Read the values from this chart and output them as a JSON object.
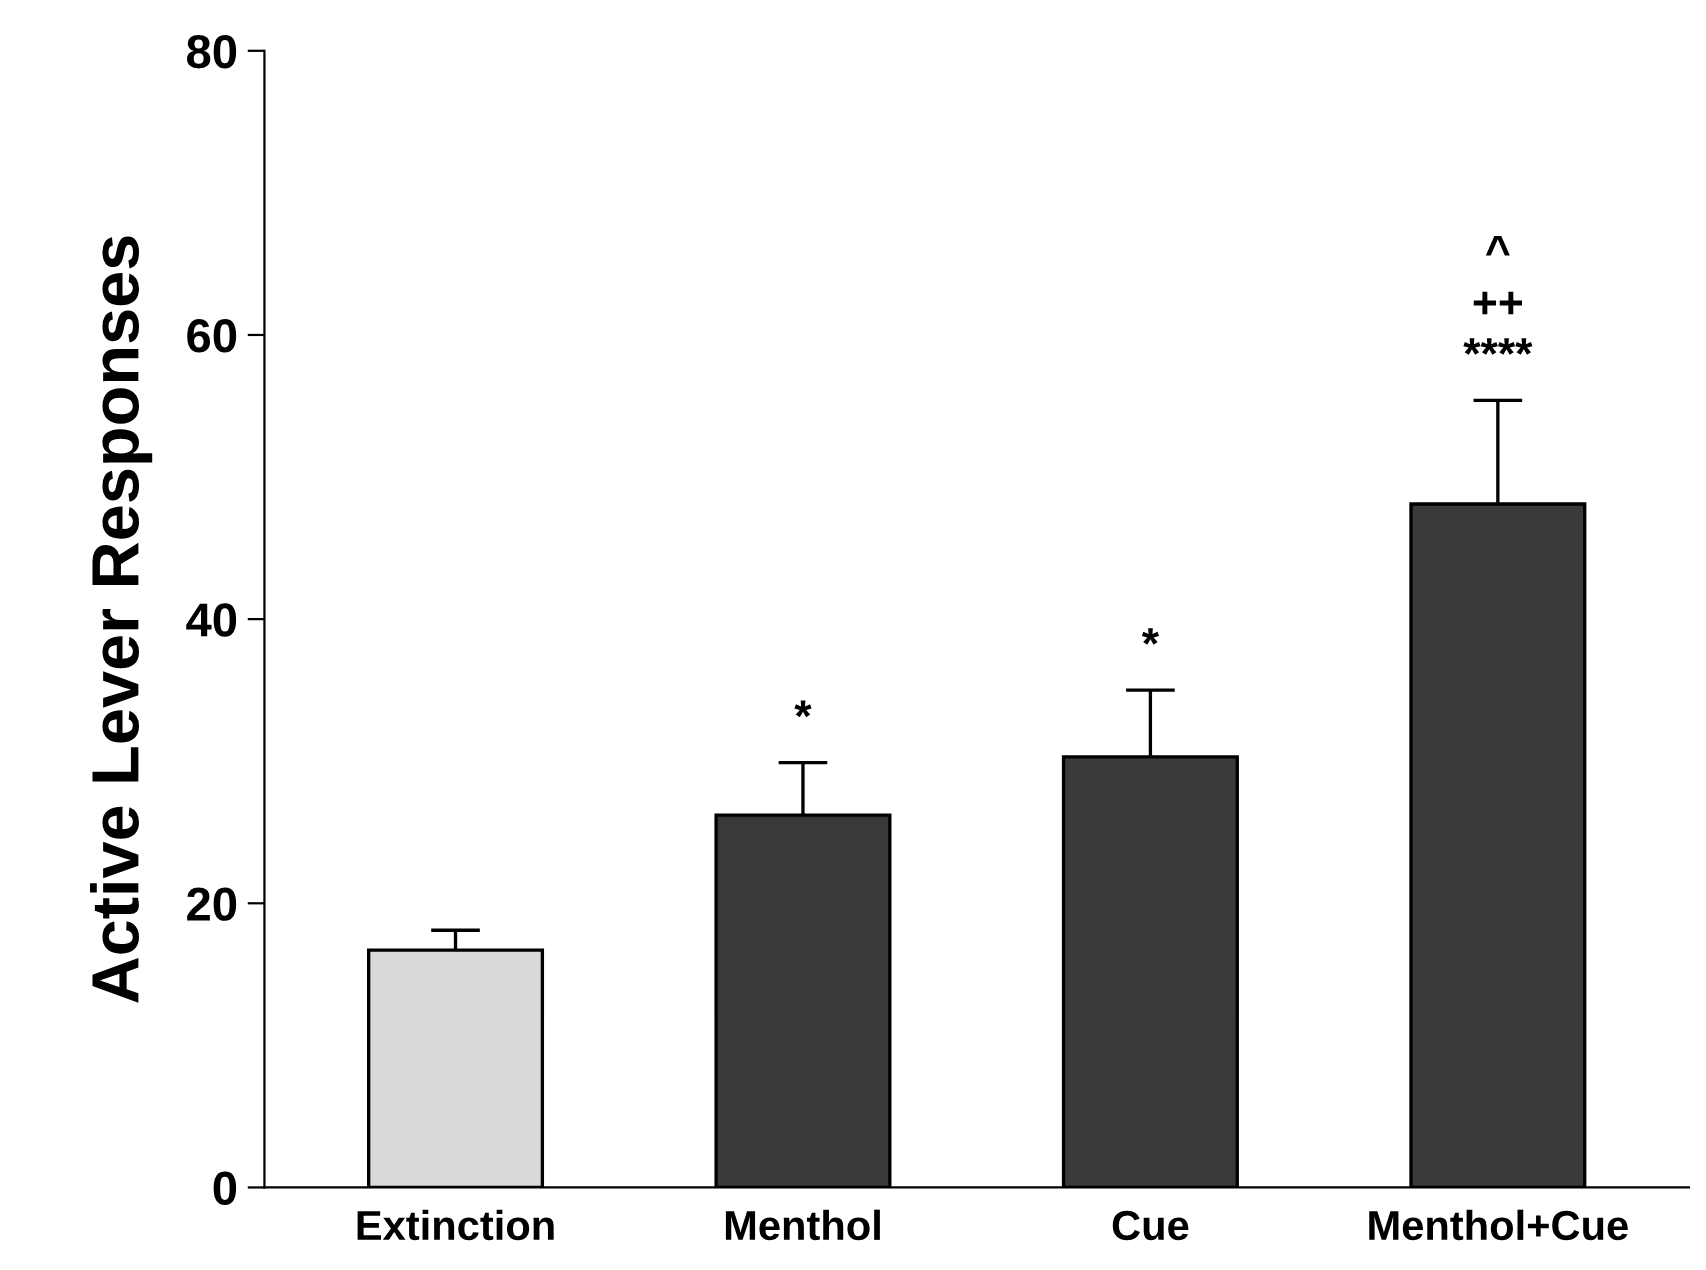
{
  "chart_data": {
    "type": "bar",
    "ylabel": "Active Lever Responses",
    "categories": [
      "Extinction",
      "Menthol",
      "Cue",
      "Menthol+Cue"
    ],
    "values": [
      16.7,
      26.2,
      30.3,
      48.1
    ],
    "colors": [
      "#d9d9d9",
      "#3a3a3a",
      "#3a3a3a",
      "#3a3a3a"
    ],
    "errors": [
      [
        16.7,
        18.1
      ],
      [
        26.2,
        29.9
      ],
      [
        30.3,
        35.0
      ],
      [
        48.1,
        55.4
      ]
    ],
    "ylim": [
      0,
      80
    ],
    "yticks": [
      0,
      20,
      40,
      60,
      80
    ],
    "grid": false,
    "annotations": [
      "*",
      "*",
      "^\n++\n****"
    ]
  }
}
